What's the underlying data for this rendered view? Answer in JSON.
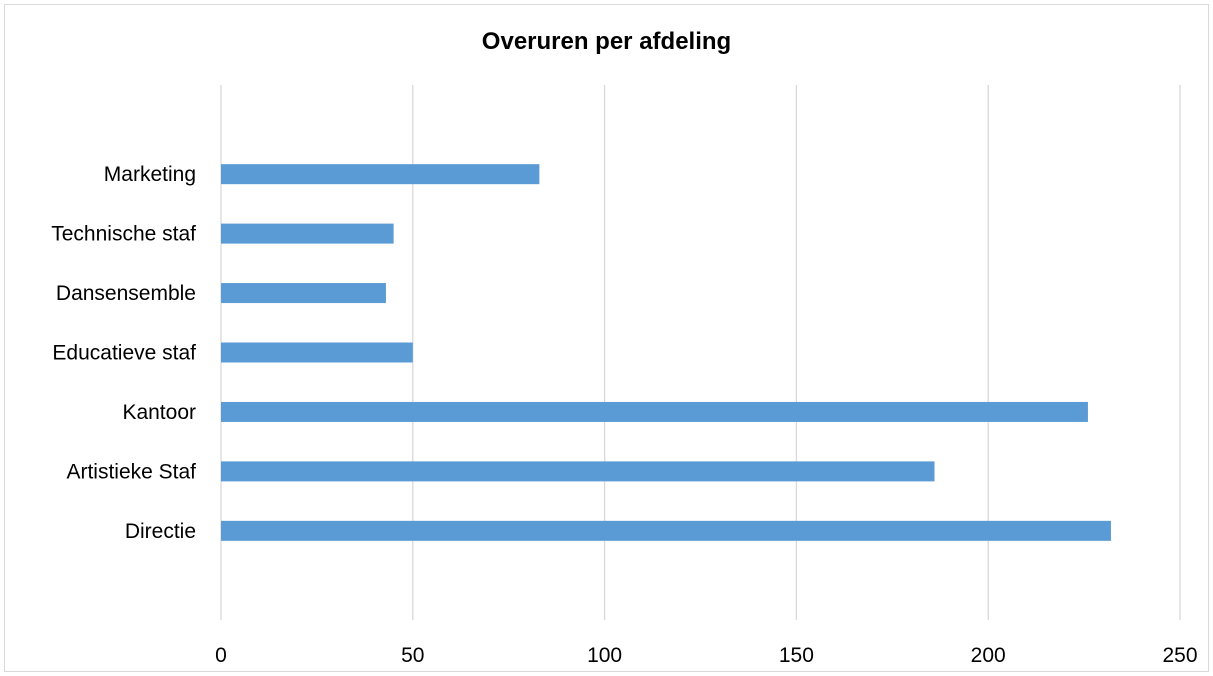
{
  "chart_data": {
    "type": "bar",
    "orientation": "horizontal",
    "title": "Overuren per afdeling",
    "xlabel": "",
    "ylabel": "",
    "categories": [
      "Directie",
      "Artistieke Staf",
      "Kantoor",
      "Educatieve staf",
      "Dansensemble",
      "Technische staf",
      "Marketing"
    ],
    "values": [
      232,
      186,
      226,
      50,
      43,
      45,
      83
    ],
    "xlim": [
      0,
      250
    ],
    "xticks": [
      "0",
      "50",
      "100",
      "150",
      "200",
      "250"
    ],
    "grid": true,
    "legend": "none",
    "bar_color": "#5b9bd5"
  }
}
